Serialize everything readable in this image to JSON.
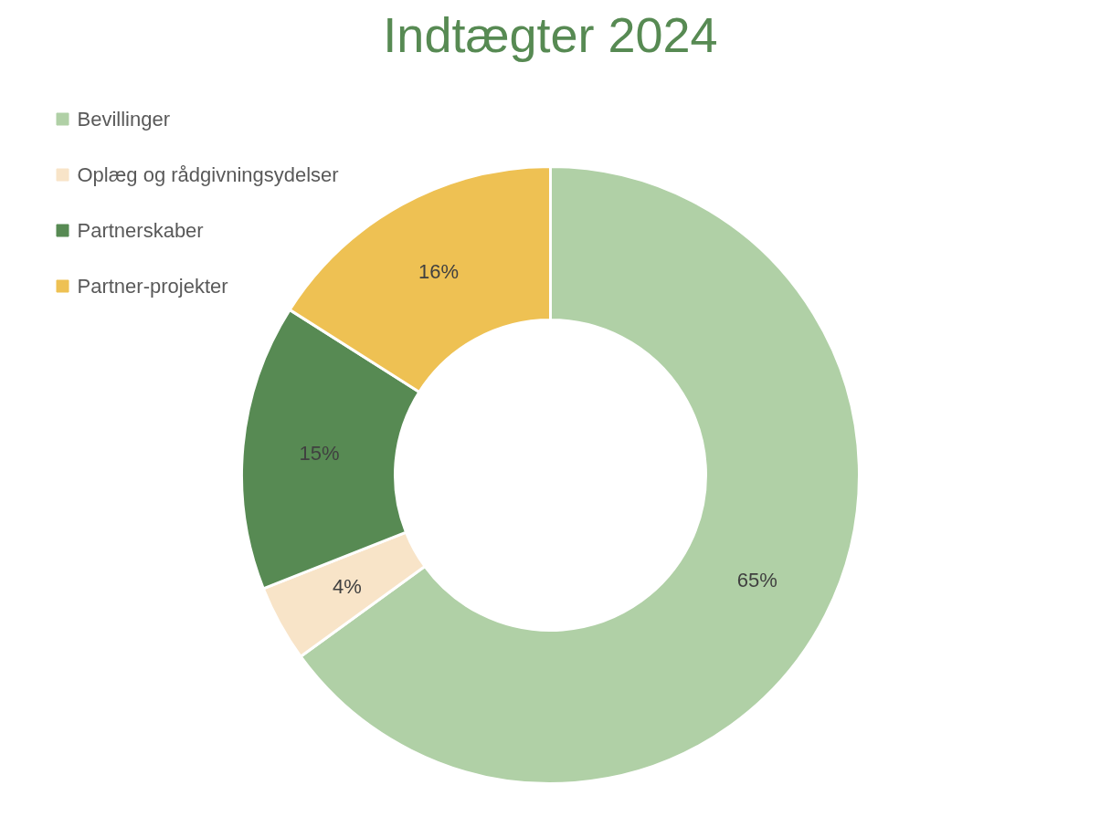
{
  "chart_data": {
    "type": "donut",
    "title": "Indtægter 2024",
    "categories": [
      "Bevillinger",
      "Oplæg og rådgivningsydelser",
      "Partnerskaber",
      "Partner-projekter"
    ],
    "values": [
      65,
      4,
      15,
      16
    ],
    "colors": [
      "#b0d0a6",
      "#f8e4c8",
      "#578a53",
      "#eec153"
    ],
    "value_labels": [
      "65%",
      "4%",
      "15%",
      "16%"
    ],
    "legend": "top left"
  }
}
